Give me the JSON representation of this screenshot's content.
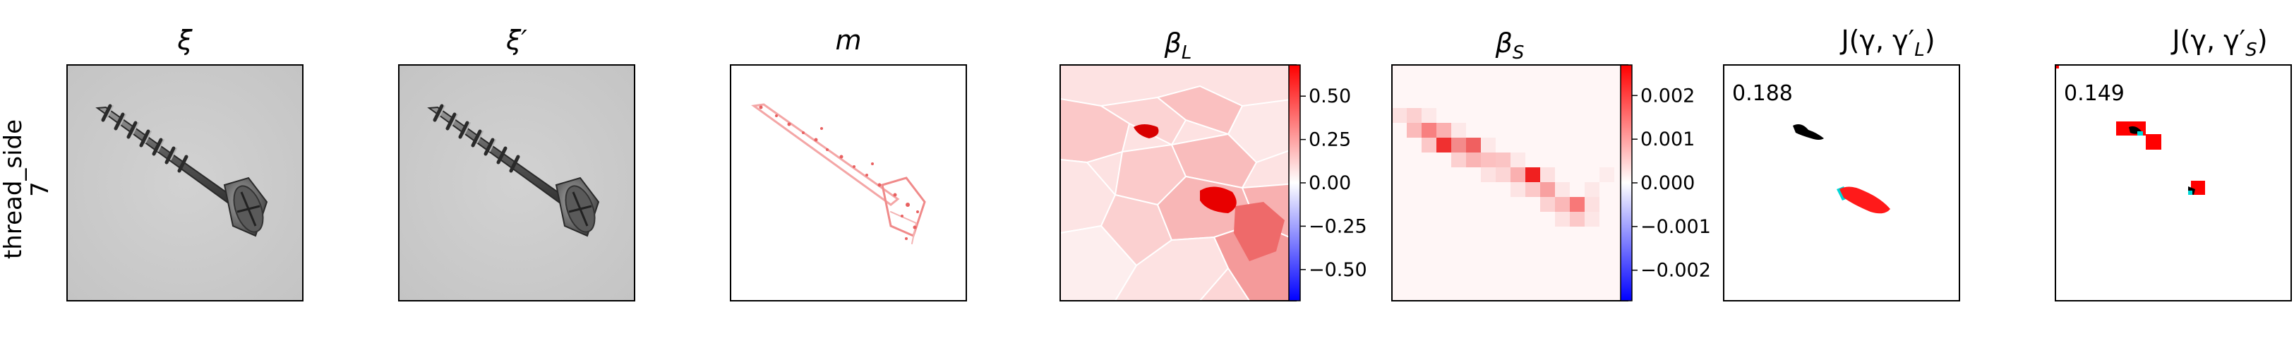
{
  "row_label": {
    "line1": "thread_side",
    "line2": "7"
  },
  "panels": [
    {
      "title": "ξ"
    },
    {
      "title": "ξ′"
    },
    {
      "title": "m"
    },
    {
      "title": "β",
      "sub": "L"
    },
    {
      "title": "β",
      "sub": "S"
    },
    {
      "title": "J(γ, γ′",
      "sub": "L",
      "close": ")",
      "score": "0.188"
    },
    {
      "title": "J(γ, γ′",
      "sub": "S",
      "close": ")",
      "score": "0.149"
    }
  ],
  "colorbars": [
    {
      "ticks": [
        "0.50",
        "0.25",
        "0.00",
        "−0.25",
        "−0.50"
      ],
      "tick_values": [
        0.5,
        0.25,
        0.0,
        -0.25,
        -0.5
      ],
      "range": [
        -0.68,
        0.68
      ]
    },
    {
      "ticks": [
        "0.002",
        "0.001",
        "0.000",
        "−0.001",
        "−0.002"
      ],
      "tick_values": [
        0.002,
        0.001,
        0.0,
        -0.001,
        -0.002
      ],
      "range": [
        -0.0027,
        0.0027
      ]
    }
  ],
  "colors": {
    "positive": "#ff0000",
    "negative": "#0000ff",
    "neutral": "#ffffff",
    "mask_dark": "#000000",
    "mask_overlap": "#00e5e5"
  }
}
